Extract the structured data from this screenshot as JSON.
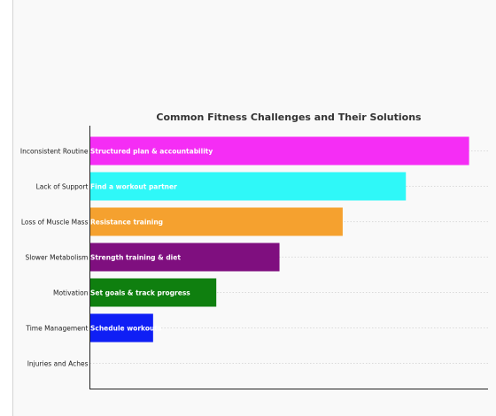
{
  "chart_data": {
    "type": "bar",
    "orientation": "horizontal",
    "title": "Common Fitness Challenges and Their Solutions",
    "xlabel": "",
    "ylabel": "",
    "xlim": [
      0,
      6.3
    ],
    "grid": "horizontal dotted",
    "categories": [
      "Inconsistent Routine",
      "Lack of Support",
      "Loss of Muscle Mass",
      "Slower Metabolism",
      "Motivation",
      "Time Management",
      "Injuries and Aches"
    ],
    "values": [
      6,
      5,
      4,
      3,
      2,
      1,
      0
    ],
    "bar_labels": [
      "Structured plan & accountability",
      "Find a workout partner",
      "Resistance training",
      "Strength training & diet",
      "Set goals & track progress",
      "Schedule workouts",
      ""
    ],
    "colors": [
      "#f52df5",
      "#2ff8f8",
      "#f5a12f",
      "#7f0f7f",
      "#0f7f0f",
      "#0f1ff5",
      "#f9f9f9"
    ]
  }
}
